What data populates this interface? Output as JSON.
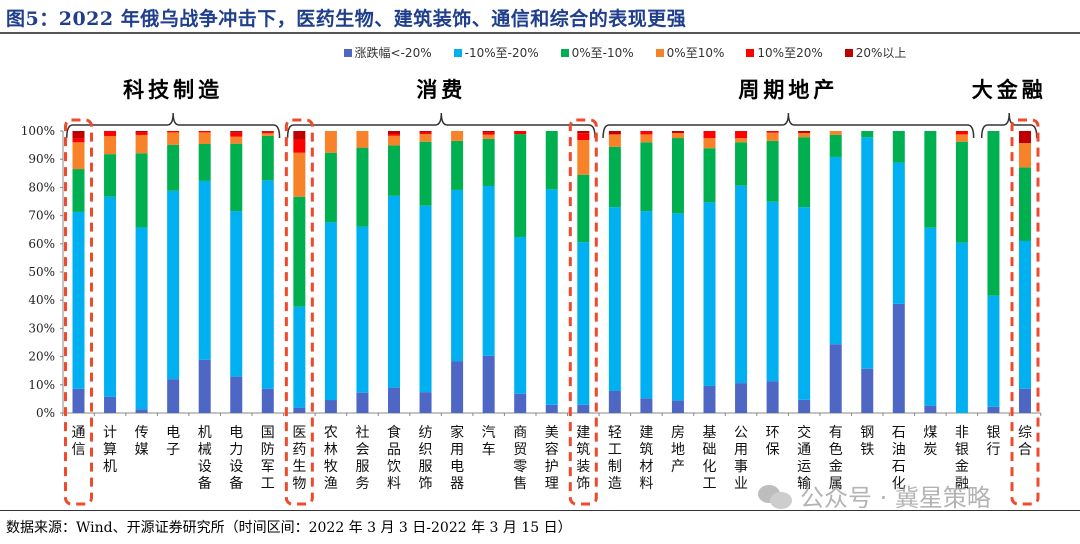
{
  "title": "图5：2022 年俄乌战争冲击下，医药生物、建筑装饰、通信和综合的表现更强",
  "source": "数据来源：Wind、开源证券研究所（时间区间：2022 年 3 月 3 日-2022 年 3 月 15 日）",
  "watermark": "公众号 · 冀星策略",
  "colors": {
    "title": "#1f3e8c",
    "series": [
      "#4f67c4",
      "#00b0f0",
      "#00b050",
      "#f7822a",
      "#ff0000",
      "#c00000"
    ],
    "highlight": "#f04a2c"
  },
  "legend": [
    {
      "label": "涨跌幅<-20%"
    },
    {
      "label": "-10%至-20%"
    },
    {
      "label": "0%至-10%"
    },
    {
      "label": "0%至10%"
    },
    {
      "label": "10%至20%"
    },
    {
      "label": "20%以上"
    }
  ],
  "groups": [
    {
      "label": "科技制造",
      "start": 0,
      "end": 6
    },
    {
      "label": "消费",
      "start": 7,
      "end": 16
    },
    {
      "label": "周期地产",
      "start": 17,
      "end": 28
    },
    {
      "label": "大金融",
      "start": 29,
      "end": 30
    }
  ],
  "chart_data": {
    "type": "bar",
    "stacked": true,
    "percent": true,
    "title": "2022 年俄乌战争冲击下，医药生物、建筑装饰、通信和综合的表现更强",
    "xlabel": "",
    "ylabel": "",
    "ylim": [
      0,
      100
    ],
    "yticks": [
      "0%",
      "10%",
      "20%",
      "30%",
      "40%",
      "50%",
      "60%",
      "70%",
      "80%",
      "90%",
      "100%"
    ],
    "grid": false,
    "legend_position": "top",
    "categories": [
      "通信",
      "计算机",
      "传媒",
      "电子",
      "机械设备",
      "电力设备",
      "国防军工",
      "医药生物",
      "农林牧渔",
      "社会服务",
      "食品饮料",
      "纺织服饰",
      "家用电器",
      "汽车",
      "商贸零售",
      "美容护理",
      "建筑装饰",
      "轻工制造",
      "建筑材料",
      "房地产",
      "基础化工",
      "公用事业",
      "环保",
      "交通运输",
      "有色金属",
      "钢铁",
      "石油石化",
      "煤炭",
      "非银金融",
      "银行",
      "综合"
    ],
    "highlighted": [
      "通信",
      "医药生物",
      "建筑装饰",
      "综合"
    ],
    "series": [
      {
        "name": "涨跌幅<-20%",
        "values": [
          8.6,
          5.7,
          1.3,
          12.0,
          18.9,
          12.9,
          8.6,
          1.9,
          4.6,
          7.2,
          9.0,
          7.4,
          18.4,
          20.3,
          6.8,
          2.9,
          2.9,
          7.8,
          5.2,
          4.4,
          9.6,
          10.6,
          11.3,
          4.7,
          24.4,
          15.7,
          38.7,
          2.6,
          0.0,
          2.2,
          8.6
        ]
      },
      {
        "name": "-10%至-20%",
        "values": [
          62.7,
          71.0,
          64.5,
          66.8,
          63.4,
          58.7,
          73.9,
          35.8,
          63.0,
          58.9,
          68.0,
          66.1,
          60.7,
          60.2,
          55.6,
          76.4,
          57.7,
          65.2,
          66.4,
          66.4,
          65.1,
          70.0,
          63.6,
          68.3,
          66.4,
          82.1,
          50.1,
          63.1,
          60.4,
          39.4,
          52.4
        ]
      },
      {
        "name": "0%至-10%",
        "values": [
          15.2,
          15.1,
          26.3,
          16.3,
          13.1,
          23.9,
          15.8,
          39.0,
          24.7,
          28.0,
          17.9,
          22.7,
          17.4,
          16.7,
          36.5,
          20.7,
          23.9,
          21.4,
          24.4,
          26.7,
          19.2,
          15.4,
          21.6,
          24.8,
          7.8,
          2.2,
          11.2,
          34.3,
          35.8,
          58.4,
          26.1
        ]
      },
      {
        "name": "0%至10%",
        "values": [
          9.5,
          6.4,
          6.5,
          4.4,
          4.1,
          2.5,
          0.9,
          15.6,
          7.7,
          5.9,
          3.4,
          2.7,
          3.5,
          1.5,
          0.0,
          0.0,
          12.3,
          4.4,
          2.8,
          1.8,
          3.6,
          1.5,
          2.9,
          1.5,
          1.4,
          0.0,
          0.0,
          0.0,
          2.6,
          0.0,
          8.6
        ]
      },
      {
        "name": "10%至20%",
        "values": [
          1.3,
          1.8,
          0.9,
          0.5,
          0.5,
          1.4,
          0.5,
          4.7,
          0.0,
          0.0,
          0.6,
          0.6,
          0.0,
          0.8,
          1.1,
          0.0,
          2.4,
          0.0,
          1.2,
          0.0,
          2.5,
          2.5,
          0.6,
          0.0,
          0.0,
          0.0,
          0.0,
          0.0,
          1.2,
          0.0,
          0.0
        ]
      },
      {
        "name": "20%以上",
        "values": [
          2.7,
          0.0,
          0.5,
          0.0,
          0.0,
          0.6,
          0.3,
          3.0,
          0.0,
          0.0,
          1.1,
          0.5,
          0.0,
          0.5,
          0.0,
          0.0,
          0.8,
          1.2,
          0.0,
          0.7,
          0.0,
          0.0,
          0.0,
          0.7,
          0.0,
          0.0,
          0.0,
          0.0,
          0.0,
          0.0,
          4.3
        ]
      }
    ]
  }
}
